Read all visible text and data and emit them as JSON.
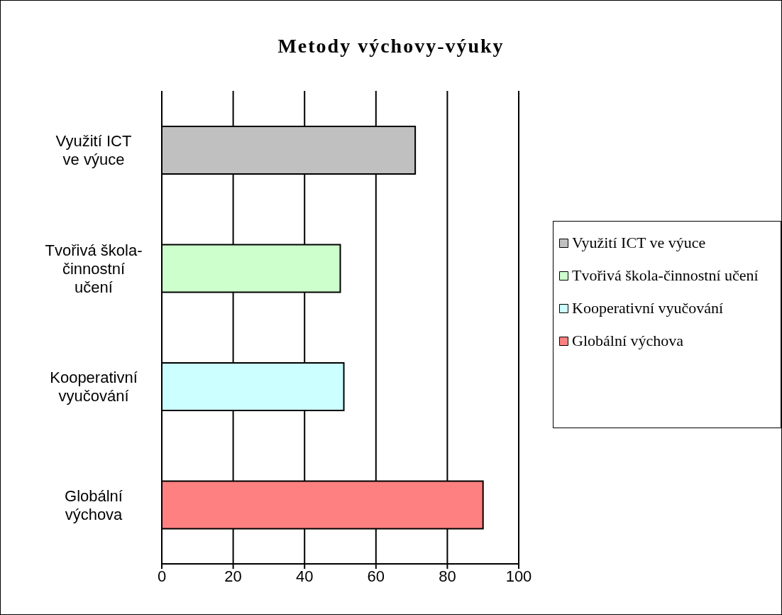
{
  "chart_data": {
    "type": "bar",
    "orientation": "horizontal",
    "stacked": true,
    "title": "Metody výchovy-výuky",
    "categories": [
      "Využití ICT ve výuce",
      "Tvořivá škola-činnostní učení",
      "Kooperativní vyučování",
      "Globální výchova"
    ],
    "series": [
      {
        "name": "Využití ICT ve výuce",
        "color": "#c0c0c0",
        "values": [
          71,
          null,
          null,
          null
        ]
      },
      {
        "name": "Tvořivá škola-činnostní učení",
        "color": "#ccffcc",
        "values": [
          null,
          50,
          null,
          null
        ]
      },
      {
        "name": "Kooperativní vyučování",
        "color": "#ccffff",
        "values": [
          null,
          null,
          51,
          null
        ]
      },
      {
        "name": "Globální výchova",
        "color": "#ff8080",
        "values": [
          null,
          null,
          null,
          90
        ]
      }
    ],
    "xlim": [
      0,
      100
    ],
    "xticks": [
      0,
      20,
      40,
      60,
      80,
      100
    ],
    "grid": "x",
    "legend": "right"
  }
}
